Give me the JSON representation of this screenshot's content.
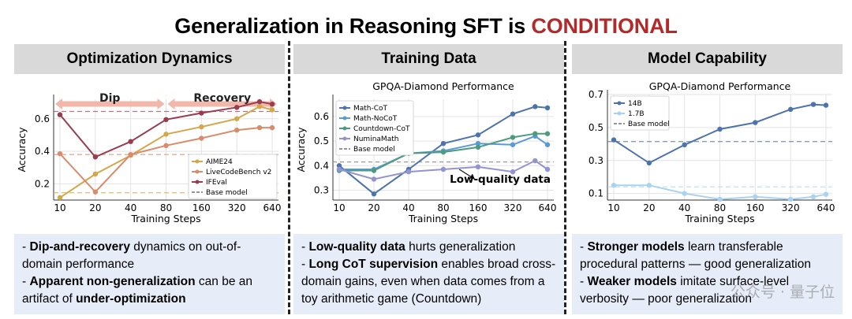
{
  "title": {
    "main": "Generalization in Reasoning SFT is ",
    "accent": "CONDITIONAL"
  },
  "panels": [
    {
      "header": "Optimization Dynamics",
      "bullets": [
        {
          "dash": "- ",
          "strong": "Dip-and-recovery",
          "rest": " dynamics on out-of-domain performance"
        },
        {
          "dash": "- ",
          "strong": "Apparent non-generalization",
          "rest": " can be an artifact of ",
          "strong2": "under-optimization"
        }
      ]
    },
    {
      "header": "Training Data",
      "bullets": [
        {
          "dash": "- ",
          "strong": "Low-quality data",
          "rest": " hurts generalization"
        },
        {
          "dash": "- ",
          "strong": "Long CoT supervision",
          "rest": " enables broad cross-domain gains, even when data comes from a toy arithmetic game (Countdown)"
        }
      ]
    },
    {
      "header": "Model Capability",
      "bullets": [
        {
          "dash": "- ",
          "strong": "Stronger models",
          "rest": " learn transferable procedural patterns — good generalization"
        },
        {
          "dash": "- ",
          "strong": "Weaker models",
          "rest": " imitate surface-level verbosity — poor generalization"
        }
      ]
    }
  ],
  "watermark": "公众号 · 量子位",
  "chart_data": [
    {
      "type": "line",
      "title": "",
      "xlabel": "Training Steps",
      "ylabel": "Accuracy",
      "x": [
        10,
        20,
        40,
        80,
        160,
        320,
        500,
        640
      ],
      "xticks": [
        "10",
        "20",
        "40",
        "80",
        "160",
        "320",
        "640"
      ],
      "x_scale": "log",
      "ylim": [
        0.1,
        0.72
      ],
      "yticks": [
        0.2,
        0.4,
        0.6
      ],
      "grid": true,
      "legend_position": "bottom-right",
      "phases": [
        {
          "label": "Dip",
          "x_range": [
            10,
            80
          ]
        },
        {
          "label": "Recovery",
          "x_range": [
            80,
            640
          ]
        }
      ],
      "series": [
        {
          "name": "AIME24",
          "color": "#d4a74a",
          "values": [
            0.115,
            0.26,
            0.375,
            0.505,
            0.55,
            0.6,
            0.675,
            0.655
          ],
          "baseline": 0.145
        },
        {
          "name": "LiveCodeBench v2",
          "color": "#d98c6a",
          "values": [
            0.385,
            0.15,
            0.38,
            0.435,
            0.48,
            0.53,
            0.545,
            0.545
          ],
          "baseline": 0.38
        },
        {
          "name": "IFEval",
          "color": "#9a3c4f",
          "values": [
            0.625,
            0.365,
            0.46,
            0.595,
            0.635,
            0.67,
            0.705,
            0.69
          ],
          "baseline": 0.645
        }
      ],
      "baseline_label": "Base model"
    },
    {
      "type": "line",
      "title": "GPQA-Diamond Performance",
      "xlabel": "Training Steps",
      "ylabel": "Accuracy",
      "x": [
        10,
        20,
        40,
        80,
        160,
        320,
        500,
        640
      ],
      "xticks": [
        "10",
        "20",
        "40",
        "80",
        "160",
        "320",
        "640"
      ],
      "x_scale": "log",
      "ylim": [
        0.26,
        0.67
      ],
      "yticks": [
        0.3,
        0.4,
        0.5,
        0.6
      ],
      "grid": true,
      "legend_position": "top-left",
      "annotation": "Low-quality data",
      "series": [
        {
          "name": "Math-CoT",
          "color": "#4d73ad",
          "values": [
            0.4,
            0.285,
            0.385,
            0.49,
            0.525,
            0.61,
            0.64,
            0.635
          ]
        },
        {
          "name": "Math-NoCoT",
          "color": "#5b9bd5",
          "values": [
            0.385,
            0.385,
            0.45,
            0.46,
            0.49,
            0.485,
            0.52,
            0.485
          ]
        },
        {
          "name": "Countdown-CoT",
          "color": "#4e9a80",
          "values": [
            0.38,
            0.38,
            0.45,
            0.455,
            0.475,
            0.515,
            0.53,
            0.53
          ]
        },
        {
          "name": "NuminaMath",
          "color": "#9393d1",
          "values": [
            0.385,
            0.345,
            0.375,
            0.385,
            0.395,
            0.375,
            0.42,
            0.385
          ]
        }
      ],
      "baseline": 0.415,
      "baseline_label": "Base model"
    },
    {
      "type": "line",
      "title": "GPQA-Diamond Performance",
      "xlabel": "Training Steps",
      "ylabel": "",
      "x": [
        10,
        20,
        40,
        80,
        160,
        320,
        500,
        640
      ],
      "xticks": [
        "10",
        "20",
        "40",
        "80",
        "160",
        "320",
        "640"
      ],
      "x_scale": "log",
      "ylim": [
        0.06,
        0.7
      ],
      "yticks": [
        0.1,
        0.3,
        0.5,
        0.7
      ],
      "grid": true,
      "legend_position": "top-left",
      "series": [
        {
          "name": "14B",
          "color": "#4d73ad",
          "values": [
            0.425,
            0.285,
            0.395,
            0.49,
            0.53,
            0.61,
            0.64,
            0.635
          ],
          "baseline": 0.415
        },
        {
          "name": "1.7B",
          "color": "#a9d3f1",
          "values": [
            0.15,
            0.15,
            0.1,
            0.065,
            0.08,
            0.065,
            0.08,
            0.095
          ],
          "baseline": 0.14
        }
      ],
      "baseline_label": "Base model"
    }
  ]
}
